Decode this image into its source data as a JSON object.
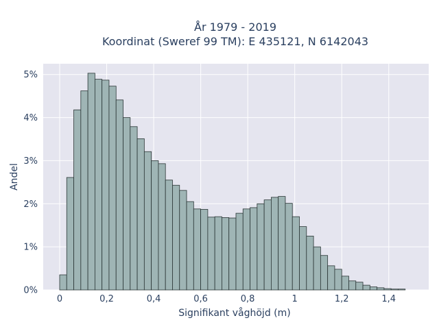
{
  "chart_data": {
    "type": "bar",
    "title": "År 1979 - 2019",
    "subtitle": "Koordinat (Sweref 99 TM): E 435121, N 6142043",
    "xlabel": "Signifikant våghöjd (m)",
    "ylabel": "Andel",
    "bin_width": 0.03,
    "x_start": 0.0,
    "xlim": [
      -0.07,
      1.57
    ],
    "ylim": [
      0,
      5.25
    ],
    "x_ticks": [
      0,
      0.2,
      0.4,
      0.6,
      0.8,
      1.0,
      1.2,
      1.4
    ],
    "x_tick_labels": [
      "0",
      "0,2",
      "0,4",
      "0,6",
      "0,8",
      "1",
      "1,2",
      "1,4"
    ],
    "y_ticks": [
      0,
      1,
      2,
      3,
      4,
      5
    ],
    "y_tick_labels": [
      "0%",
      "1%",
      "2%",
      "3%",
      "4%",
      "5%"
    ],
    "values": [
      0.35,
      2.61,
      4.18,
      4.62,
      5.03,
      4.89,
      4.87,
      4.73,
      4.41,
      4.0,
      3.79,
      3.51,
      3.21,
      3.0,
      2.93,
      2.55,
      2.43,
      2.31,
      2.05,
      1.88,
      1.87,
      1.69,
      1.7,
      1.68,
      1.67,
      1.78,
      1.88,
      1.91,
      2.0,
      2.09,
      2.15,
      2.17,
      2.01,
      1.7,
      1.47,
      1.25,
      1.0,
      0.8,
      0.56,
      0.48,
      0.32,
      0.21,
      0.18,
      0.11,
      0.07,
      0.05,
      0.03,
      0.02,
      0.02
    ],
    "grid": true,
    "legend": "none",
    "colors": {
      "background": "#ffffff",
      "plot_background": "#e5e5ef",
      "grid": "#ffffff",
      "bar_fill": "#9fb5b5",
      "bar_stroke": "#2a3535",
      "text": "#2a3f5f"
    }
  }
}
